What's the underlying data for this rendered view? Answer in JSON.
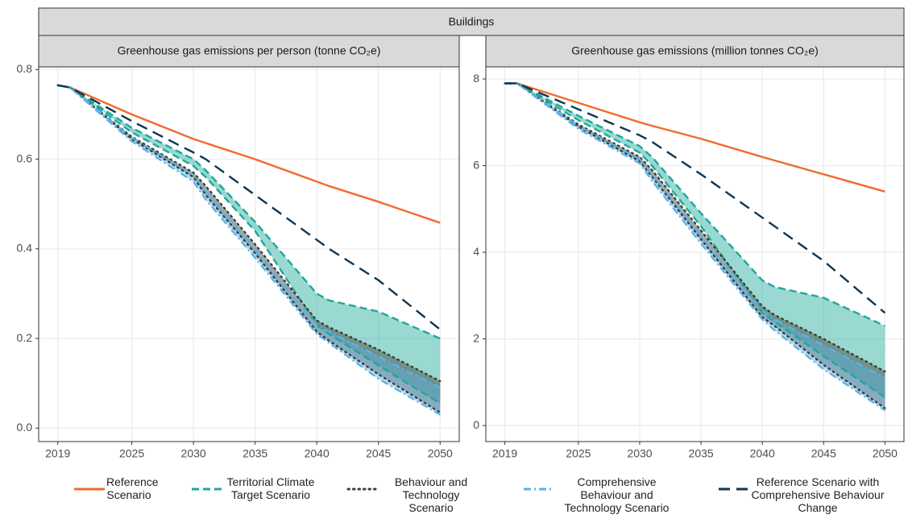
{
  "strip_title": "Buildings",
  "chart_data": [
    {
      "type": "line",
      "title": "Greenhouse gas emissions per person (tonne CO₂e)",
      "x": [
        2019,
        2020,
        2025,
        2030,
        2031,
        2035,
        2040,
        2041,
        2045,
        2050
      ],
      "xlim": [
        2017.45,
        2051.55
      ],
      "xticks": [
        2019,
        2025,
        2030,
        2035,
        2040,
        2045,
        2050
      ],
      "ylim": [
        -0.03,
        0.806
      ],
      "yticks": [
        {
          "value": 0,
          "label": "0.0"
        },
        0.2,
        0.4,
        0.6,
        0.8
      ],
      "grid": true,
      "series": [
        {
          "name": "Reference Scenario",
          "color": "#f26b2c",
          "dash": "solid",
          "values": [
            0.765,
            0.76,
            0.7,
            0.645,
            0.636,
            0.6,
            0.55,
            0.54,
            0.505,
            0.458
          ]
        },
        {
          "name": "Territorial Climate Target Scenario",
          "color": "#1ea89b",
          "dash": "dashed",
          "values": [
            0.765,
            0.76,
            0.67,
            0.6,
            0.575,
            0.46,
            0.3,
            0.285,
            0.26,
            0.2
          ],
          "lower": [
            0.765,
            0.76,
            0.66,
            0.585,
            0.56,
            0.44,
            0.23,
            0.21,
            0.14,
            0.055
          ]
        },
        {
          "name": "Behaviour and Technology Scenario",
          "color": "#3d3d30",
          "dash": "dotted",
          "values": [
            0.765,
            0.76,
            0.65,
            0.57,
            0.54,
            0.41,
            0.24,
            0.225,
            0.175,
            0.105
          ],
          "lower": [
            0.765,
            0.76,
            0.645,
            0.56,
            0.52,
            0.39,
            0.215,
            0.195,
            0.12,
            0.035
          ]
        },
        {
          "name": "Comprehensive Behaviour and Technology Scenario",
          "color": "#5cb2e6",
          "dash": "dotdash",
          "values": [
            0.765,
            0.76,
            0.648,
            0.565,
            0.53,
            0.4,
            0.23,
            0.215,
            0.16,
            0.09
          ],
          "lower": [
            0.765,
            0.76,
            0.64,
            0.55,
            0.51,
            0.38,
            0.21,
            0.19,
            0.11,
            0.03
          ]
        },
        {
          "name": "Reference Scenario with Comprehensive Behaviour Change",
          "color": "#0e3552",
          "dash": "longdash",
          "values": [
            0.765,
            0.76,
            0.685,
            0.615,
            0.6,
            0.52,
            0.42,
            0.4,
            0.33,
            0.22
          ]
        }
      ]
    },
    {
      "type": "line",
      "title": "Greenhouse gas emissions (million tonnes CO₂e)",
      "x": [
        2019,
        2020,
        2025,
        2030,
        2031,
        2035,
        2040,
        2041,
        2045,
        2050
      ],
      "xlim": [
        2017.45,
        2051.55
      ],
      "xticks": [
        2019,
        2025,
        2030,
        2035,
        2040,
        2045,
        2050
      ],
      "ylim": [
        -0.37,
        8.28
      ],
      "yticks": [
        0,
        2,
        4,
        6,
        8
      ],
      "grid": true,
      "series": [
        {
          "color": "#f26b2c",
          "dash": "solid",
          "values": [
            7.9,
            7.9,
            7.45,
            7.0,
            6.92,
            6.62,
            6.2,
            6.12,
            5.8,
            5.4
          ]
        },
        {
          "color": "#1ea89b",
          "dash": "dashed",
          "values": [
            7.9,
            7.9,
            7.15,
            6.45,
            6.2,
            4.9,
            3.35,
            3.2,
            2.95,
            2.3
          ],
          "lower": [
            7.9,
            7.9,
            7.05,
            6.3,
            6.0,
            4.6,
            2.6,
            2.4,
            1.6,
            0.65
          ]
        },
        {
          "color": "#3d3d30",
          "dash": "dotted",
          "values": [
            7.9,
            7.9,
            6.95,
            6.2,
            5.9,
            4.5,
            2.75,
            2.55,
            2.0,
            1.25
          ],
          "lower": [
            7.9,
            7.9,
            6.9,
            6.1,
            5.75,
            4.3,
            2.5,
            2.3,
            1.4,
            0.4
          ]
        },
        {
          "color": "#5cb2e6",
          "dash": "dotdash",
          "values": [
            7.9,
            7.9,
            6.92,
            6.15,
            5.8,
            4.4,
            2.65,
            2.45,
            1.85,
            1.1
          ],
          "lower": [
            7.9,
            7.9,
            6.85,
            6.05,
            5.65,
            4.2,
            2.45,
            2.2,
            1.3,
            0.35
          ]
        },
        {
          "color": "#0e3552",
          "dash": "longdash",
          "values": [
            7.9,
            7.9,
            7.3,
            6.7,
            6.55,
            5.8,
            4.8,
            4.6,
            3.8,
            2.6
          ]
        }
      ]
    }
  ]
}
